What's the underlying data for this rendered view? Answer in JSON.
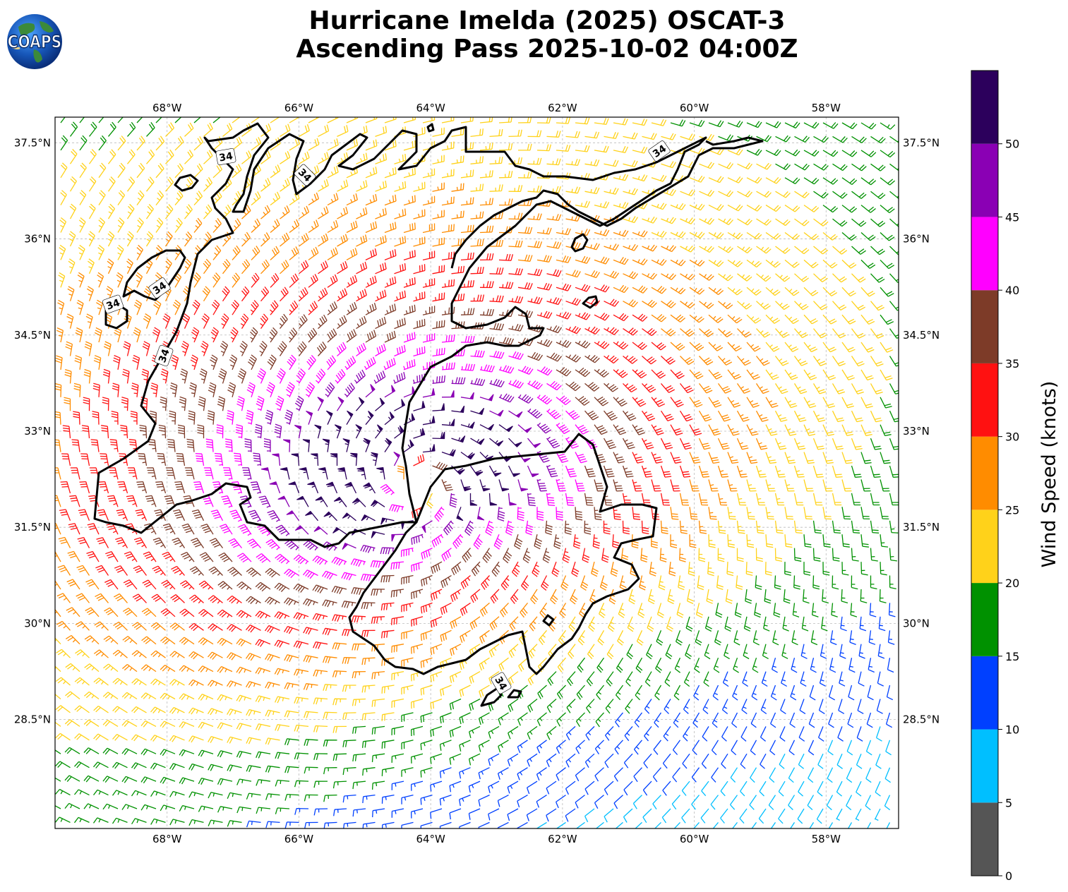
{
  "title": {
    "line1": "Hurricane Imelda (2025) OSCAT-3",
    "line2": "Ascending Pass 2025-10-02 04:00Z"
  },
  "logo": {
    "text": "COAPS"
  },
  "map": {
    "lon_ticks": [
      "68°W",
      "66°W",
      "64°W",
      "62°W",
      "60°W",
      "58°W"
    ],
    "lat_ticks": [
      "37.5°N",
      "36°N",
      "34.5°N",
      "33°N",
      "31.5°N",
      "30°N",
      "28.5°N"
    ],
    "lon_range": [
      -69.7,
      -56.9
    ],
    "lat_range": [
      26.8,
      37.9
    ],
    "gridlines": true,
    "storm_center": {
      "lon": -64.2,
      "lat": 32.2
    },
    "contour_label": "34",
    "contour_level_knots": 34
  },
  "colorbar": {
    "label": "Wind Speed (knots)",
    "ticks": [
      "0",
      "5",
      "10",
      "15",
      "20",
      "25",
      "30",
      "35",
      "40",
      "45",
      "50"
    ],
    "bins": [
      {
        "min": 0,
        "max": 5,
        "color": "#555555"
      },
      {
        "min": 5,
        "max": 10,
        "color": "#00bfff"
      },
      {
        "min": 10,
        "max": 15,
        "color": "#0040ff"
      },
      {
        "min": 15,
        "max": 20,
        "color": "#009100"
      },
      {
        "min": 20,
        "max": 25,
        "color": "#ffd21a"
      },
      {
        "min": 25,
        "max": 30,
        "color": "#ff8c00"
      },
      {
        "min": 30,
        "max": 35,
        "color": "#ff1111"
      },
      {
        "min": 35,
        "max": 40,
        "color": "#7d3b28"
      },
      {
        "min": 40,
        "max": 45,
        "color": "#ff00ff"
      },
      {
        "min": 45,
        "max": 50,
        "color": "#8a00b4"
      },
      {
        "min": 50,
        "max": 55,
        "color": "#2c005c"
      }
    ]
  }
}
